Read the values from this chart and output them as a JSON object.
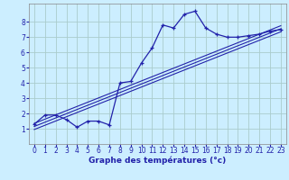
{
  "xlabel": "Graphe des températures (°c)",
  "bg_color": "#cceeff",
  "grid_color": "#aacccc",
  "line_color": "#2222aa",
  "x_data": [
    0,
    1,
    2,
    3,
    4,
    5,
    6,
    7,
    8,
    9,
    10,
    11,
    12,
    13,
    14,
    15,
    16,
    17,
    18,
    19,
    20,
    21,
    22,
    23
  ],
  "y_data": [
    1.3,
    1.9,
    1.9,
    1.6,
    1.1,
    1.5,
    1.5,
    1.25,
    4.0,
    4.1,
    5.3,
    6.3,
    7.8,
    7.6,
    8.5,
    8.7,
    7.6,
    7.2,
    7.0,
    7.0,
    7.1,
    7.2,
    7.4,
    7.5
  ],
  "reg_line1_y": [
    1.15,
    7.55
  ],
  "reg_line2_y": [
    0.95,
    7.35
  ],
  "reg_line3_y": [
    1.35,
    7.75
  ],
  "xlim": [
    -0.5,
    23.5
  ],
  "ylim": [
    0,
    9.2
  ],
  "yticks": [
    1,
    2,
    3,
    4,
    5,
    6,
    7,
    8
  ],
  "xticks": [
    0,
    1,
    2,
    3,
    4,
    5,
    6,
    7,
    8,
    9,
    10,
    11,
    12,
    13,
    14,
    15,
    16,
    17,
    18,
    19,
    20,
    21,
    22,
    23
  ],
  "xlabel_fontsize": 6.5,
  "tick_fontsize": 5.5
}
